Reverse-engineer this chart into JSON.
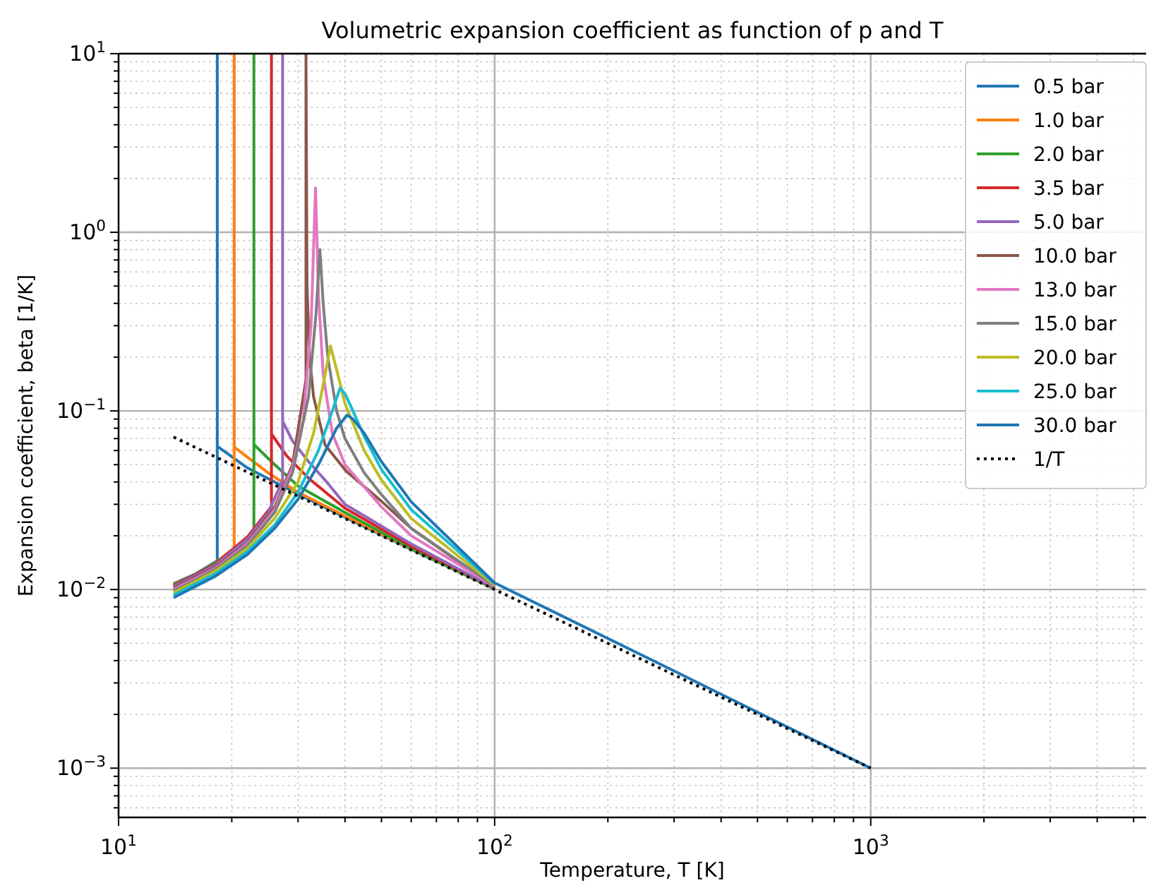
{
  "chart_data": {
    "type": "line",
    "title": "Volumetric expansion coefficient as function of p and T",
    "xlabel": "Temperature, T [K]",
    "ylabel": "Expansion coefficient, beta [1/K]",
    "log": "xy",
    "grid": true,
    "legend": "top right",
    "xlim": [
      10,
      5400
    ],
    "ylim": [
      0.00053,
      10
    ],
    "xticks": [
      {
        "value": 10,
        "label": "10$^{1}$"
      },
      {
        "value": 20,
        "label": null
      },
      {
        "value": 30,
        "label": null
      },
      {
        "value": 40,
        "label": null
      },
      {
        "value": 50,
        "label": null
      },
      {
        "value": 60,
        "label": null
      },
      {
        "value": 70,
        "label": null
      },
      {
        "value": 80,
        "label": null
      },
      {
        "value": 90,
        "label": null
      },
      {
        "value": 100,
        "label": "10$^{2}$"
      },
      {
        "value": 200,
        "label": null
      },
      {
        "value": 300,
        "label": null
      },
      {
        "value": 400,
        "label": null
      },
      {
        "value": 500,
        "label": null
      },
      {
        "value": 600,
        "label": null
      },
      {
        "value": 700,
        "label": null
      },
      {
        "value": 800,
        "label": null
      },
      {
        "value": 900,
        "label": null
      },
      {
        "value": 1000,
        "label": "10$^{3}$"
      },
      {
        "value": 2000,
        "label": null
      },
      {
        "value": 3000,
        "label": null
      },
      {
        "value": 4000,
        "label": null
      },
      {
        "value": 5000,
        "label": null
      }
    ],
    "yticks": [
      {
        "value": 0.0006,
        "label": null
      },
      {
        "value": 0.0007,
        "label": null
      },
      {
        "value": 0.0008,
        "label": null
      },
      {
        "value": 0.0009,
        "label": null
      },
      {
        "value": 0.001,
        "label": "10$^{−3}$"
      },
      {
        "value": 0.002,
        "label": null
      },
      {
        "value": 0.003,
        "label": null
      },
      {
        "value": 0.004,
        "label": null
      },
      {
        "value": 0.005,
        "label": null
      },
      {
        "value": 0.006,
        "label": null
      },
      {
        "value": 0.007,
        "label": null
      },
      {
        "value": 0.008,
        "label": null
      },
      {
        "value": 0.009,
        "label": null
      },
      {
        "value": 0.01,
        "label": "10$^{−2}$"
      },
      {
        "value": 0.02,
        "label": null
      },
      {
        "value": 0.03,
        "label": null
      },
      {
        "value": 0.04,
        "label": null
      },
      {
        "value": 0.05,
        "label": null
      },
      {
        "value": 0.06,
        "label": null
      },
      {
        "value": 0.07,
        "label": null
      },
      {
        "value": 0.08,
        "label": null
      },
      {
        "value": 0.09,
        "label": null
      },
      {
        "value": 0.1,
        "label": "10$^{−1}$"
      },
      {
        "value": 0.2,
        "label": null
      },
      {
        "value": 0.3,
        "label": null
      },
      {
        "value": 0.4,
        "label": null
      },
      {
        "value": 0.5,
        "label": null
      },
      {
        "value": 0.6,
        "label": null
      },
      {
        "value": 0.7,
        "label": null
      },
      {
        "value": 0.8,
        "label": null
      },
      {
        "value": 0.9,
        "label": null
      },
      {
        "value": 1,
        "label": "10$^{0}$"
      },
      {
        "value": 2,
        "label": null
      },
      {
        "value": 3,
        "label": null
      },
      {
        "value": 4,
        "label": null
      },
      {
        "value": 5,
        "label": null
      },
      {
        "value": 6,
        "label": null
      },
      {
        "value": 7,
        "label": null
      },
      {
        "value": 8,
        "label": null
      },
      {
        "value": 9,
        "label": null
      },
      {
        "value": 10,
        "label": "10$^{1}$"
      }
    ],
    "series": [
      {
        "name": "0.5 bar",
        "color": "#1f77b4",
        "x": [
          14,
          16,
          18.3,
          18.3,
          18.3,
          22,
          30,
          40,
          60,
          100
        ],
        "values": [
          0.0108,
          0.0122,
          0.0145,
          10,
          0.0634,
          0.048,
          0.0342,
          0.0254,
          0.0168,
          0.0101
        ]
      },
      {
        "name": "1.0 bar",
        "color": "#ff7f0e",
        "x": [
          14,
          16,
          18,
          20.3,
          20.3,
          20.3,
          25,
          30,
          40,
          60,
          100
        ],
        "values": [
          0.0107,
          0.0121,
          0.014,
          0.0171,
          10,
          0.0627,
          0.045,
          0.035,
          0.0258,
          0.0169,
          0.0101
        ]
      },
      {
        "name": "2.0 bar",
        "color": "#2ca02c",
        "x": [
          14,
          17,
          20,
          22.9,
          22.9,
          22.9,
          26,
          30,
          40,
          60,
          100
        ],
        "values": [
          0.0106,
          0.013,
          0.0162,
          0.0209,
          10,
          0.0648,
          0.05,
          0.038,
          0.027,
          0.017,
          0.0101
        ]
      },
      {
        "name": "3.5 bar",
        "color": "#d62728",
        "x": [
          14,
          18,
          22,
          25.5,
          25.5,
          25.5,
          28,
          32,
          40,
          60,
          100
        ],
        "values": [
          0.0105,
          0.0138,
          0.0197,
          0.0292,
          10,
          0.0743,
          0.056,
          0.042,
          0.0285,
          0.0175,
          0.0102
        ]
      },
      {
        "name": "5.0 bar",
        "color": "#9467bd",
        "x": [
          14,
          18,
          22,
          25,
          27.3,
          27.3,
          27.3,
          29,
          32,
          35.4,
          40,
          60,
          100
        ],
        "values": [
          0.0104,
          0.0136,
          0.0192,
          0.027,
          0.0408,
          10,
          0.0876,
          0.068,
          0.052,
          0.041,
          0.03,
          0.018,
          0.0102
        ]
      },
      {
        "name": "10.0 bar",
        "color": "#8c564b",
        "x": [
          14,
          18,
          22,
          26,
          29,
          31.5,
          31.5,
          31.7,
          32.2,
          33,
          35.4,
          40.3,
          50,
          60,
          100
        ],
        "values": [
          0.0102,
          0.0133,
          0.0183,
          0.029,
          0.05,
          0.15,
          10,
          0.5,
          0.2,
          0.12,
          0.0646,
          0.046,
          0.0312,
          0.022,
          0.0103
        ]
      },
      {
        "name": "13.0 bar",
        "color": "#e377c2",
        "x": [
          14,
          18,
          22,
          26,
          29,
          31,
          32.5,
          33.4,
          34,
          35,
          37,
          40,
          50,
          60,
          100
        ],
        "values": [
          0.01,
          0.0131,
          0.018,
          0.028,
          0.048,
          0.09,
          0.3,
          1.77,
          0.45,
          0.16,
          0.075,
          0.05,
          0.029,
          0.02,
          0.0104
        ]
      },
      {
        "name": "15.0 bar",
        "color": "#7f7f7f",
        "x": [
          14,
          18,
          22,
          26,
          29,
          32,
          33.5,
          34.3,
          35,
          36,
          38,
          40,
          45,
          50,
          60,
          100
        ],
        "values": [
          0.0098,
          0.0129,
          0.0176,
          0.027,
          0.045,
          0.12,
          0.35,
          0.8,
          0.4,
          0.2,
          0.1,
          0.07,
          0.045,
          0.034,
          0.022,
          0.0105
        ]
      },
      {
        "name": "20.0 bar",
        "color": "#bcbd22",
        "x": [
          14,
          18,
          22,
          26,
          30,
          33,
          35,
          36.6,
          38,
          40,
          45,
          50,
          60,
          100
        ],
        "values": [
          0.0096,
          0.0126,
          0.017,
          0.025,
          0.04,
          0.075,
          0.14,
          0.231,
          0.17,
          0.11,
          0.06,
          0.041,
          0.025,
          0.0106
        ]
      },
      {
        "name": "25.0 bar",
        "color": "#17becf",
        "x": [
          14,
          18,
          22,
          26,
          30,
          34,
          37,
          38.8,
          40,
          42,
          45,
          50,
          60,
          100
        ],
        "values": [
          0.0093,
          0.0122,
          0.0163,
          0.023,
          0.035,
          0.06,
          0.1,
          0.134,
          0.125,
          0.1,
          0.072,
          0.047,
          0.028,
          0.0108
        ]
      },
      {
        "name": "30.0 bar",
        "color": "#1f77b4",
        "x": [
          14,
          18,
          22,
          26,
          30,
          34,
          38,
          40.5,
          42,
          45,
          50,
          60,
          100,
          300,
          1000
        ],
        "values": [
          0.009,
          0.0118,
          0.0157,
          0.022,
          0.032,
          0.05,
          0.08,
          0.0947,
          0.09,
          0.075,
          0.052,
          0.031,
          0.0109,
          0.0035,
          0.001
        ]
      },
      {
        "name": "1/T",
        "color": "#000000",
        "line_style": "dotted",
        "x": [
          14,
          20,
          30,
          50,
          100,
          200,
          300,
          500,
          1000
        ],
        "values": [
          0.0714,
          0.05,
          0.0333,
          0.02,
          0.01,
          0.005,
          0.00333,
          0.002,
          0.001
        ]
      }
    ]
  }
}
